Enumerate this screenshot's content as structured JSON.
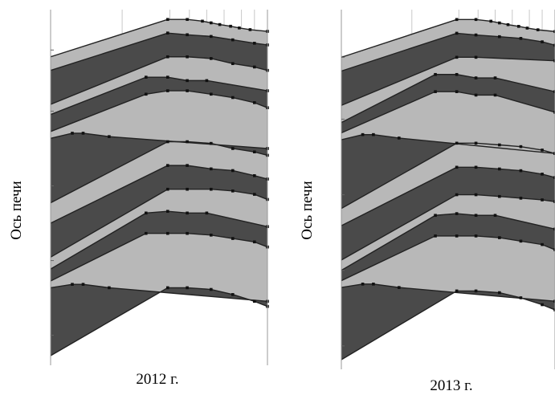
{
  "colors": {
    "dark": "#4a4a4a",
    "light": "#b8b8b8",
    "outline": "#222222",
    "grid": "#c8c8c8",
    "axis": "#9a9a9a"
  },
  "chart_data": [
    {
      "type": "area",
      "title": "2012 г.",
      "ylabel": "Ось печи",
      "xlim": [
        0,
        1
      ],
      "ylim": [
        0,
        1
      ],
      "grid_x": [
        0.33,
        0.55,
        0.64,
        0.72,
        0.8,
        0.88,
        0.94
      ],
      "grid_y": [
        0.9,
        0.72,
        0.5,
        0.28,
        0.06
      ],
      "boundaries": [
        {
          "x": [
            0,
            0.54,
            0.63,
            0.7,
            0.74,
            0.78,
            0.83,
            0.87,
            0.92,
            1
          ],
          "y": [
            0.88,
            0.99,
            0.99,
            0.985,
            0.98,
            0.975,
            0.97,
            0.965,
            0.96,
            0.955
          ]
        },
        {
          "x": [
            0,
            0.54,
            0.63,
            0.74,
            0.84,
            0.94,
            1
          ],
          "y": [
            0.84,
            0.95,
            0.945,
            0.94,
            0.93,
            0.92,
            0.915
          ]
        },
        {
          "x": [
            0,
            0.54,
            0.63,
            0.74,
            0.84,
            0.94,
            1
          ],
          "y": [
            0.74,
            0.88,
            0.88,
            0.875,
            0.86,
            0.85,
            0.84
          ]
        },
        {
          "x": [
            0,
            0.44,
            0.54,
            0.63,
            0.72,
            1
          ],
          "y": [
            0.71,
            0.82,
            0.82,
            0.81,
            0.81,
            0.78
          ]
        },
        {
          "x": [
            0,
            0.44,
            0.54,
            0.63,
            0.74,
            0.84,
            0.94,
            1
          ],
          "y": [
            0.66,
            0.77,
            0.78,
            0.78,
            0.77,
            0.76,
            0.745,
            0.73
          ]
        },
        {
          "x": [
            0,
            0.1,
            0.15,
            0.27,
            1
          ],
          "y": [
            0.64,
            0.655,
            0.655,
            0.645,
            0.61
          ]
        },
        {
          "x": [
            0,
            0.54,
            0.63,
            0.74,
            0.84,
            0.94,
            1
          ],
          "y": [
            0.45,
            0.63,
            0.63,
            0.625,
            0.61,
            0.6,
            0.59
          ]
        },
        {
          "x": [
            0,
            0.54,
            0.63,
            0.74,
            0.84,
            0.94,
            1
          ],
          "y": [
            0.39,
            0.56,
            0.56,
            0.55,
            0.545,
            0.53,
            0.52
          ]
        },
        {
          "x": [
            0,
            0.54,
            0.63,
            0.74,
            0.84,
            0.94,
            1
          ],
          "y": [
            0.29,
            0.49,
            0.49,
            0.49,
            0.485,
            0.475,
            0.46
          ]
        },
        {
          "x": [
            0,
            0.44,
            0.54,
            0.63,
            0.72,
            1
          ],
          "y": [
            0.255,
            0.42,
            0.425,
            0.42,
            0.42,
            0.38
          ]
        },
        {
          "x": [
            0,
            0.44,
            0.54,
            0.63,
            0.74,
            0.84,
            0.94,
            1
          ],
          "y": [
            0.22,
            0.36,
            0.36,
            0.36,
            0.355,
            0.345,
            0.335,
            0.32
          ]
        },
        {
          "x": [
            0,
            0.1,
            0.15,
            0.27,
            1
          ],
          "y": [
            0.2,
            0.21,
            0.21,
            0.2,
            0.16
          ]
        },
        {
          "x": [
            0,
            0.54,
            0.63,
            0.74,
            0.84,
            0.94,
            1
          ],
          "y": [
            0,
            0.2,
            0.2,
            0.195,
            0.18,
            0.16,
            0.145
          ]
        }
      ]
    },
    {
      "type": "area",
      "title": "2013 г.",
      "ylabel": "Ось печи",
      "xlim": [
        0,
        1
      ],
      "ylim": [
        0,
        1
      ],
      "grid_x": [
        0.33,
        0.55,
        0.64,
        0.72,
        0.8,
        0.88,
        0.94
      ],
      "grid_y": [
        0.88,
        0.7,
        0.48,
        0.26,
        0.04
      ],
      "boundaries": [
        {
          "x": [
            0,
            0.54,
            0.63,
            0.7,
            0.74,
            0.78,
            0.83,
            0.87,
            0.92,
            1
          ],
          "y": [
            0.88,
            0.99,
            0.99,
            0.985,
            0.98,
            0.975,
            0.97,
            0.965,
            0.96,
            0.955
          ]
        },
        {
          "x": [
            0,
            0.54,
            0.63,
            0.74,
            0.84,
            0.94,
            1
          ],
          "y": [
            0.84,
            0.95,
            0.945,
            0.94,
            0.935,
            0.925,
            0.915
          ]
        },
        {
          "x": [
            0,
            0.54,
            0.63,
            1
          ],
          "y": [
            0.74,
            0.88,
            0.88,
            0.87
          ]
        },
        {
          "x": [
            0,
            0.44,
            0.54,
            0.63,
            0.72,
            1
          ],
          "y": [
            0.69,
            0.83,
            0.83,
            0.82,
            0.82,
            0.78
          ]
        },
        {
          "x": [
            0,
            0.44,
            0.54,
            0.63,
            0.72,
            1
          ],
          "y": [
            0.66,
            0.78,
            0.78,
            0.77,
            0.77,
            0.72
          ]
        },
        {
          "x": [
            0,
            0.1,
            0.15,
            0.27,
            1
          ],
          "y": [
            0.64,
            0.655,
            0.655,
            0.645,
            0.6
          ]
        },
        {
          "x": [
            0,
            0.54,
            0.63,
            0.74,
            0.84,
            0.94,
            1
          ],
          "y": [
            0.44,
            0.63,
            0.63,
            0.625,
            0.62,
            0.61,
            0.6
          ]
        },
        {
          "x": [
            0,
            0.54,
            0.63,
            0.74,
            0.84,
            0.94,
            1
          ],
          "y": [
            0.39,
            0.56,
            0.56,
            0.555,
            0.55,
            0.54,
            0.53
          ]
        },
        {
          "x": [
            0,
            0.54,
            0.63,
            0.74,
            0.84,
            0.94,
            1
          ],
          "y": [
            0.29,
            0.48,
            0.48,
            0.475,
            0.47,
            0.465,
            0.46
          ]
        },
        {
          "x": [
            0,
            0.44,
            0.54,
            0.63,
            0.72,
            1
          ],
          "y": [
            0.26,
            0.42,
            0.425,
            0.42,
            0.42,
            0.38
          ]
        },
        {
          "x": [
            0,
            0.44,
            0.54,
            0.63,
            0.74,
            0.84,
            0.94,
            1
          ],
          "y": [
            0.23,
            0.36,
            0.36,
            0.36,
            0.355,
            0.345,
            0.335,
            0.32
          ]
        },
        {
          "x": [
            0,
            0.1,
            0.15,
            0.27,
            1
          ],
          "y": [
            0.21,
            0.22,
            0.22,
            0.21,
            0.17
          ]
        },
        {
          "x": [
            0,
            0.54,
            0.63,
            0.74,
            0.84,
            0.94,
            1
          ],
          "y": [
            0,
            0.2,
            0.2,
            0.195,
            0.18,
            0.16,
            0.145
          ]
        }
      ]
    }
  ]
}
